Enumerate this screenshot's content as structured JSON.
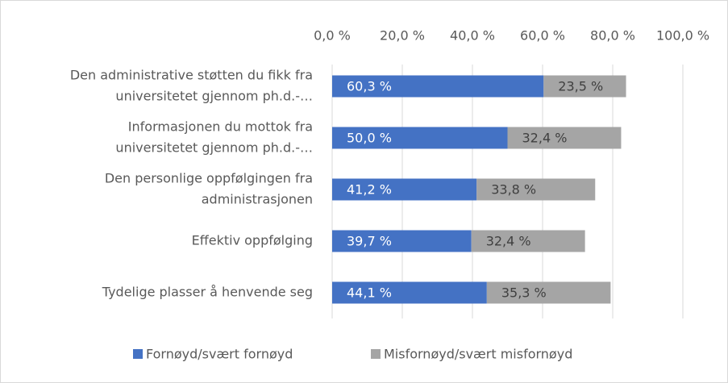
{
  "chart_data": {
    "type": "stacked_bar",
    "orientation": "horizontal",
    "categories": [
      [
        "Den administrative støtten du fikk fra",
        "universitetet gjennom ph.d.-…"
      ],
      [
        "Informasjonen du mottok fra",
        "universitetet gjennom ph.d.-…"
      ],
      [
        "Den personlige oppfølgingen fra",
        "administrasjonen"
      ],
      [
        "Effektiv oppfølging"
      ],
      [
        "Tydelige plasser å henvende seg"
      ]
    ],
    "series": [
      {
        "name": "Fornøyd/svært fornøyd",
        "color": "#4472c4",
        "values": [
          60.3,
          50.0,
          41.2,
          39.7,
          44.1
        ],
        "value_labels": [
          "60,3 %",
          "50,0 %",
          "41,2 %",
          "39,7 %",
          "44,1 %"
        ]
      },
      {
        "name": "Misfornøyd/svært misfornøyd",
        "color": "#a5a5a5",
        "values": [
          23.5,
          32.4,
          33.8,
          32.4,
          35.3
        ],
        "value_labels": [
          "23,5 %",
          "32,4 %",
          "33,8 %",
          "32,4 %",
          "35,3 %"
        ]
      }
    ],
    "xlim": [
      0,
      100
    ],
    "xticks": [
      {
        "value": 0,
        "label": "0,0 %"
      },
      {
        "value": 20,
        "label": "20,0 %"
      },
      {
        "value": 40,
        "label": "40,0 %"
      },
      {
        "value": 60,
        "label": "60,0 %"
      },
      {
        "value": 80,
        "label": "80,0 %"
      },
      {
        "value": 100,
        "label": "100,0 %"
      }
    ],
    "grid": true,
    "legend": "bottom"
  }
}
